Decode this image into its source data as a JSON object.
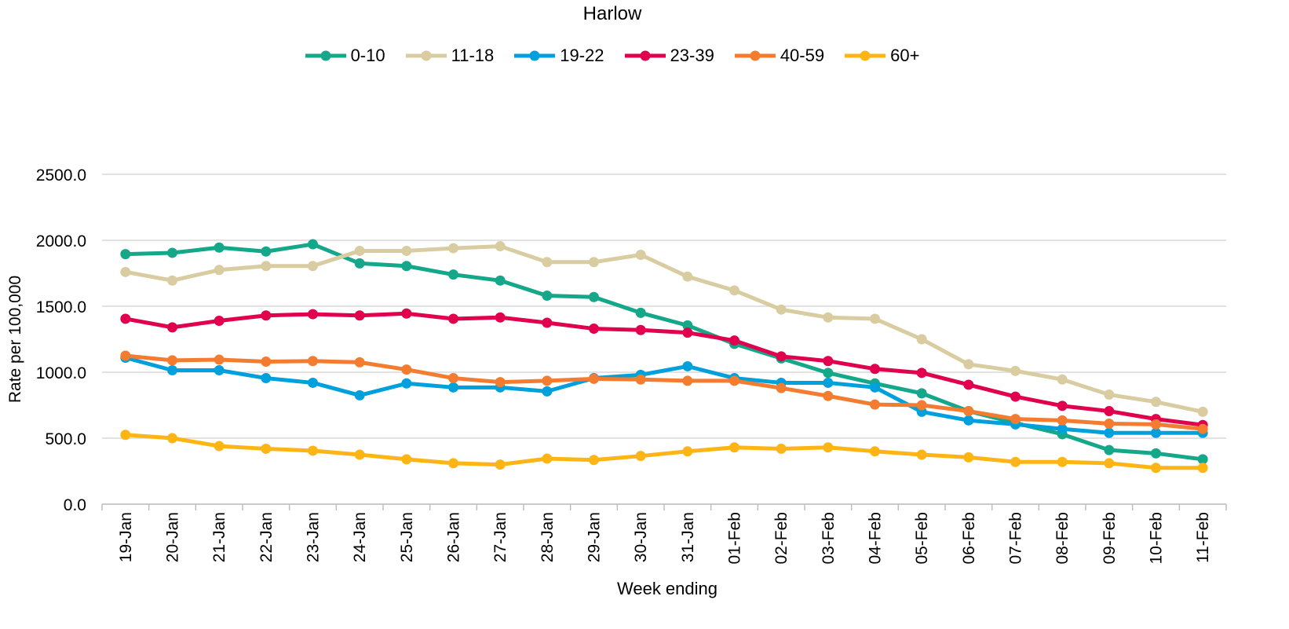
{
  "chart_data": {
    "type": "line",
    "title": "Harlow",
    "xlabel": "Week ending",
    "ylabel": "Rate per 100,000",
    "ylim": [
      0,
      2500
    ],
    "yticks": [
      "0.0",
      "500.0",
      "1000.0",
      "1500.0",
      "2000.0",
      "2500.0"
    ],
    "grid": true,
    "legend": "top-center",
    "categories": [
      "19-Jan",
      "20-Jan",
      "21-Jan",
      "22-Jan",
      "23-Jan",
      "24-Jan",
      "25-Jan",
      "26-Jan",
      "27-Jan",
      "28-Jan",
      "29-Jan",
      "30-Jan",
      "31-Jan",
      "01-Feb",
      "02-Feb",
      "03-Feb",
      "04-Feb",
      "05-Feb",
      "06-Feb",
      "07-Feb",
      "08-Feb",
      "09-Feb",
      "10-Feb",
      "11-Feb"
    ],
    "series": [
      {
        "name": "0-10",
        "color": "#14A789",
        "values": [
          1895,
          1905,
          1945,
          1915,
          1970,
          1825,
          1805,
          1740,
          1695,
          1580,
          1570,
          1450,
          1355,
          1215,
          1105,
          995,
          915,
          840,
          705,
          615,
          530,
          410,
          385,
          340
        ]
      },
      {
        "name": "11-18",
        "color": "#D8CCA0",
        "values": [
          1760,
          1695,
          1775,
          1805,
          1805,
          1920,
          1920,
          1940,
          1955,
          1835,
          1835,
          1890,
          1725,
          1620,
          1475,
          1415,
          1405,
          1250,
          1060,
          1010,
          945,
          830,
          775,
          700
        ]
      },
      {
        "name": "19-22",
        "color": "#00A0DC",
        "values": [
          1110,
          1015,
          1015,
          955,
          920,
          825,
          915,
          885,
          885,
          855,
          955,
          980,
          1045,
          955,
          920,
          920,
          885,
          700,
          635,
          605,
          570,
          540,
          540,
          540
        ]
      },
      {
        "name": "23-39",
        "color": "#E0004D",
        "values": [
          1405,
          1340,
          1390,
          1430,
          1440,
          1430,
          1445,
          1405,
          1415,
          1375,
          1330,
          1320,
          1300,
          1240,
          1120,
          1085,
          1025,
          995,
          905,
          815,
          745,
          705,
          645,
          600
        ]
      },
      {
        "name": "40-59",
        "color": "#F47C30",
        "values": [
          1125,
          1090,
          1095,
          1080,
          1085,
          1075,
          1020,
          955,
          925,
          935,
          950,
          945,
          935,
          935,
          880,
          820,
          755,
          750,
          705,
          645,
          635,
          610,
          605,
          570
        ]
      },
      {
        "name": "60+",
        "color": "#FDB515",
        "values": [
          525,
          500,
          440,
          420,
          405,
          375,
          340,
          310,
          300,
          345,
          335,
          365,
          400,
          430,
          420,
          430,
          400,
          375,
          355,
          320,
          320,
          310,
          275,
          275
        ]
      }
    ]
  }
}
